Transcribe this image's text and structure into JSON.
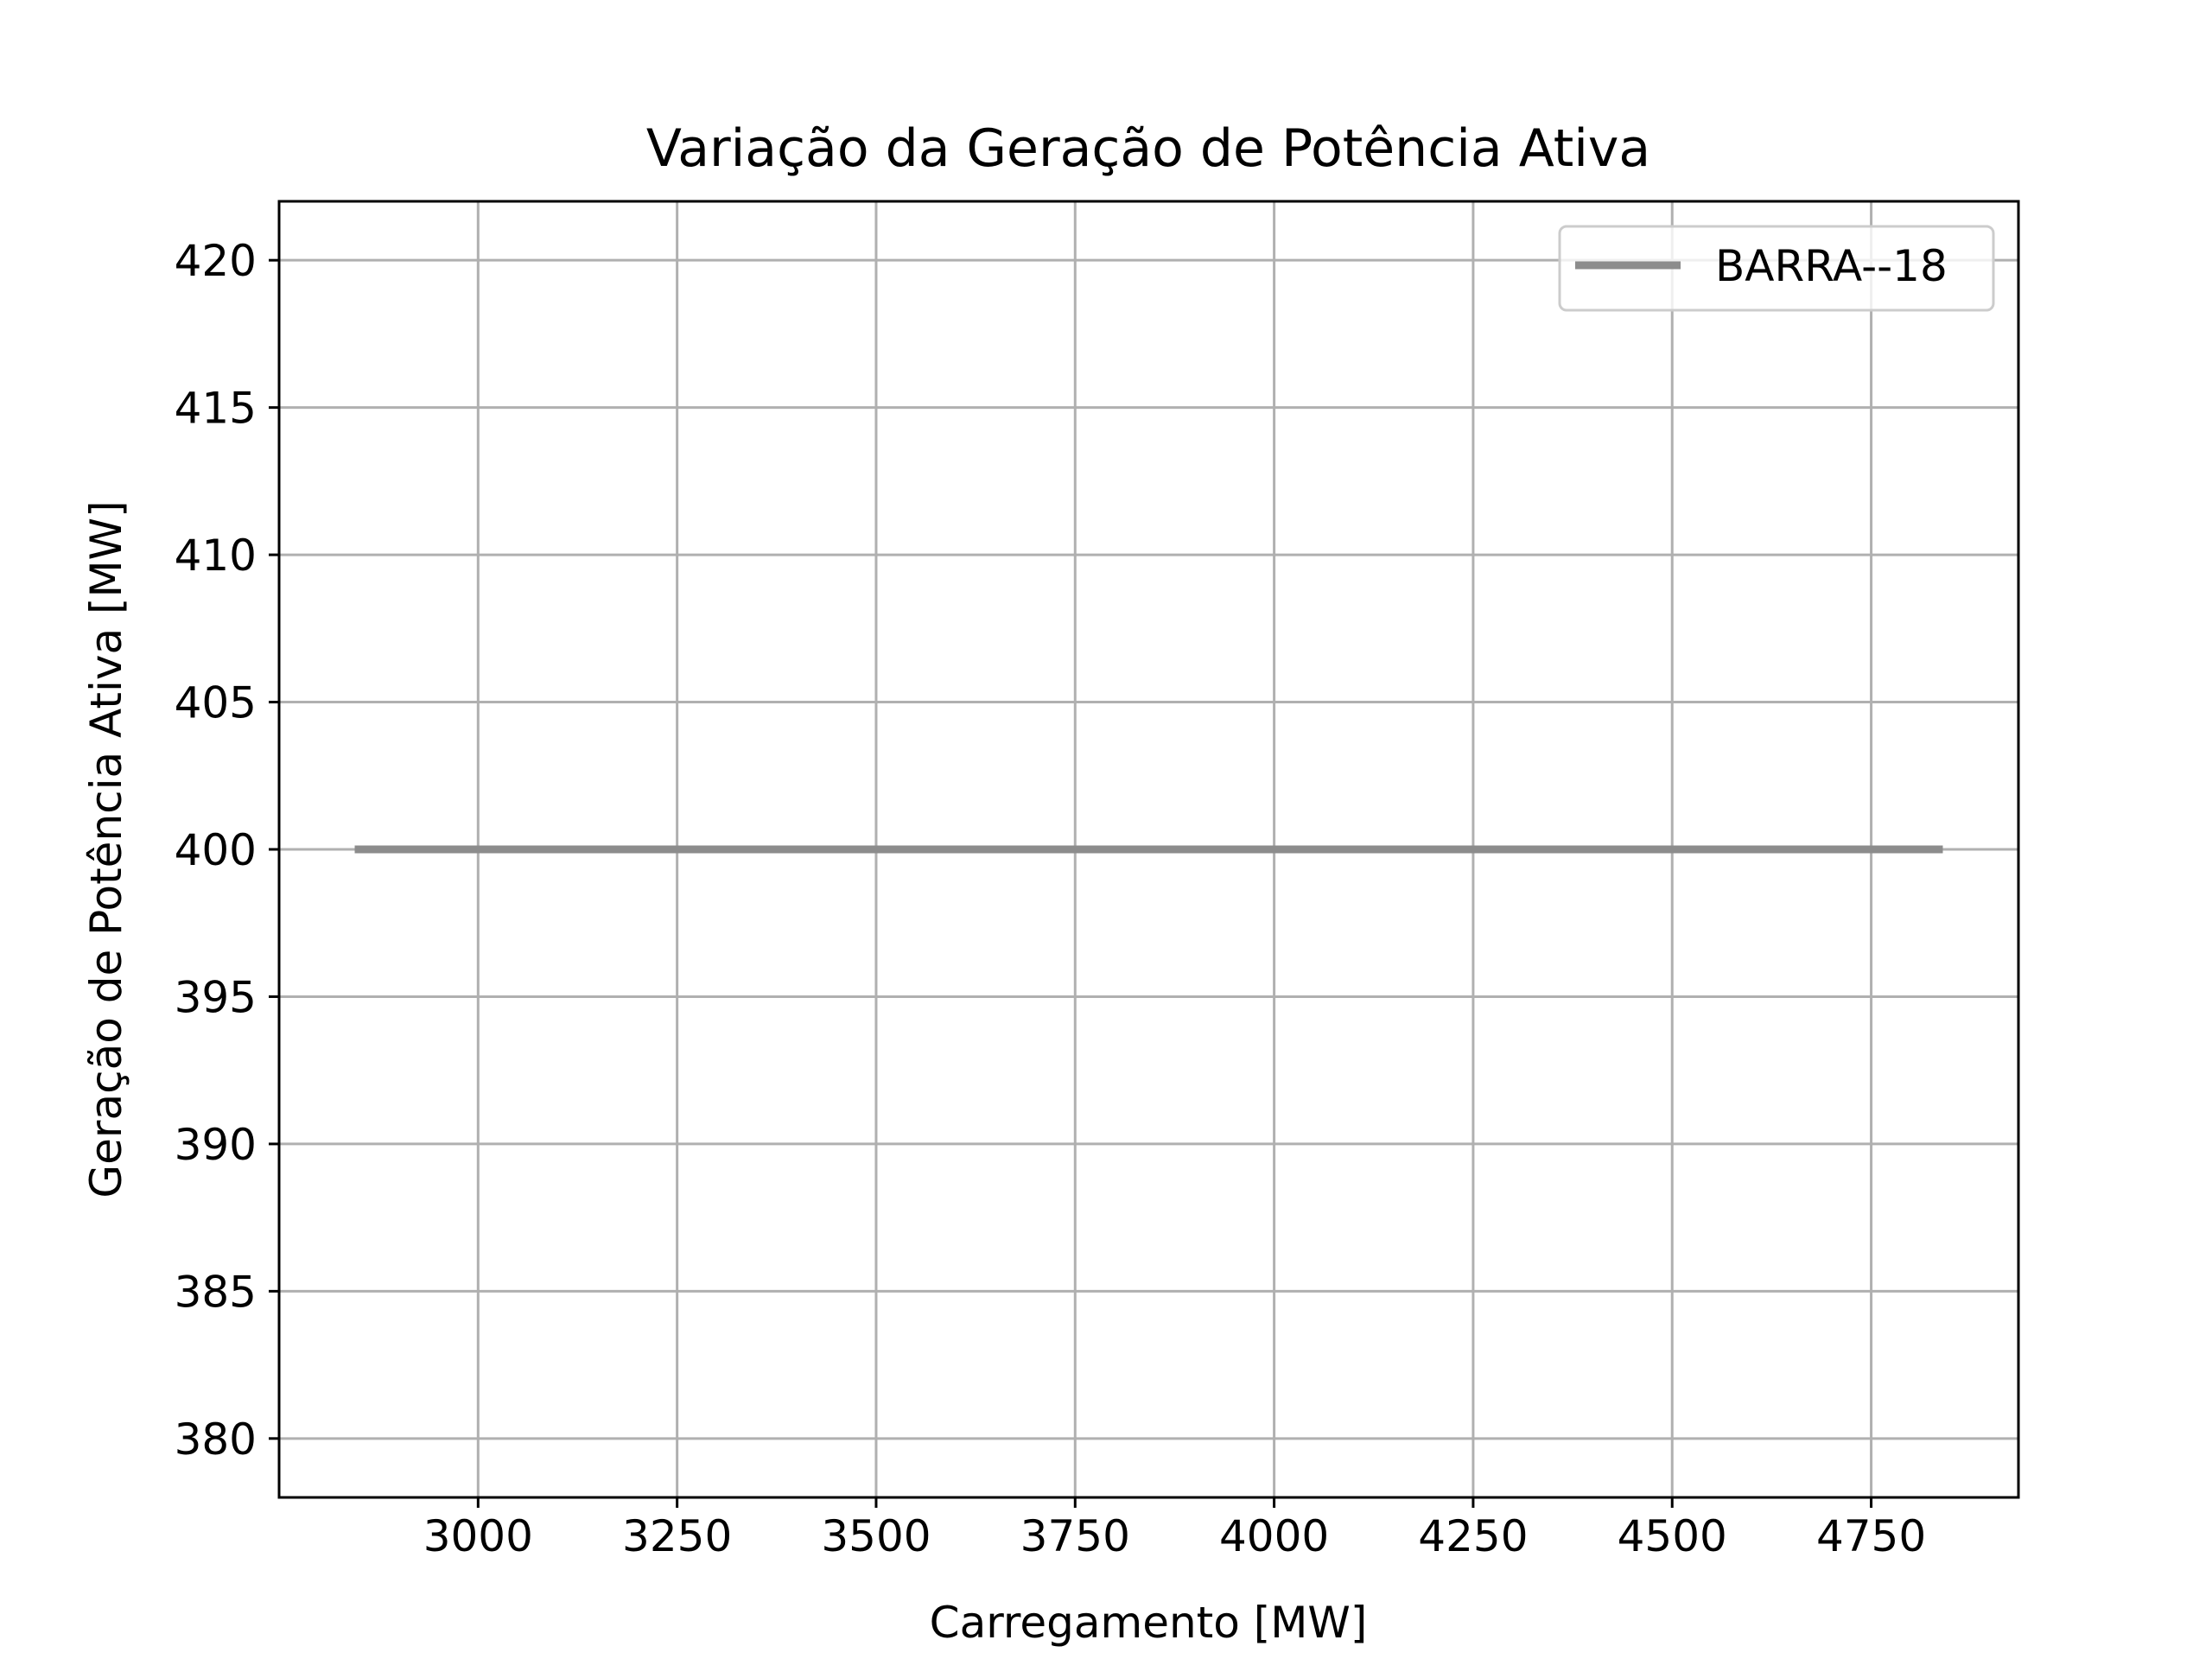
{
  "chart_data": {
    "type": "line",
    "title": "Variação da Geração de Potência Ativa",
    "xlabel": "Carregamento [MW]",
    "ylabel": "Geração de Potência Ativa [MW]",
    "xlim": [
      2750,
      4935
    ],
    "ylim": [
      378,
      422
    ],
    "xticks": [
      3000,
      3250,
      3500,
      3750,
      4000,
      4250,
      4500,
      4750
    ],
    "yticks": [
      380,
      385,
      390,
      395,
      400,
      405,
      410,
      415,
      420
    ],
    "grid": true,
    "legend_position": "top-right",
    "series": [
      {
        "name": "BARRA--18",
        "color": "#8c8c8c",
        "x": [
          2845,
          4840
        ],
        "y": [
          400,
          400
        ]
      }
    ]
  }
}
